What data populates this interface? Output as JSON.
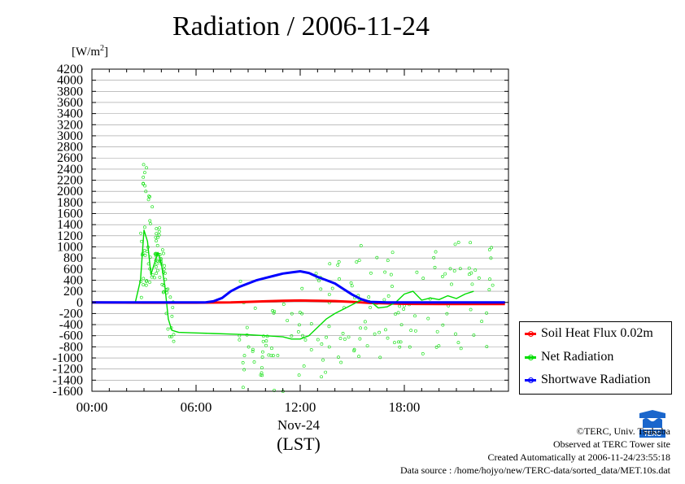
{
  "title": "Radiation / 2006-11-24",
  "unit_label": "[W/m2]",
  "x_date_label": "Nov-24",
  "x_axis_label": "(LST)",
  "footer": {
    "line1": "©TERC, Univ. Tsukuba",
    "line2": "Observed at TERC Tower site",
    "line3": "Created Automatically at 2006-11-24/23:55:18",
    "line4": "Data source : /home/hojyo/new/TERC-data/sorted_data/MET.10s.dat"
  },
  "logo_text": "TERC",
  "colors": {
    "soil": "#ff0000",
    "net": "#00dd00",
    "shortwave": "#0000ff",
    "grid": "#999999"
  },
  "chart_data": {
    "type": "line",
    "title": "Radiation / 2006-11-24",
    "xlabel": "(LST)",
    "ylabel": "[W/m2]",
    "xlim": [
      0,
      24
    ],
    "ylim": [
      -1600,
      4200
    ],
    "grid": true,
    "legend_position": "right",
    "x_ticks": [
      "00:00",
      "06:00",
      "12:00",
      "18:00"
    ],
    "x_tick_hours": [
      0,
      6,
      12,
      18
    ],
    "y_ticks": [
      -1600,
      -1400,
      -1200,
      -1000,
      -800,
      -600,
      -400,
      -200,
      0,
      200,
      400,
      600,
      800,
      1000,
      1200,
      1400,
      1600,
      1800,
      2000,
      2200,
      2400,
      2600,
      2800,
      3000,
      3200,
      3400,
      3600,
      3800,
      4000,
      4200
    ],
    "series": [
      {
        "name": "Soil Heat Flux 0.02m",
        "color": "#ff0000",
        "x": [
          0,
          3,
          6,
          8,
          9,
          10,
          11,
          12,
          13,
          14,
          15,
          16,
          18,
          20,
          22,
          23.8
        ],
        "y": [
          0,
          -5,
          -5,
          0,
          10,
          20,
          30,
          35,
          30,
          25,
          10,
          -10,
          -25,
          -30,
          -30,
          -30
        ]
      },
      {
        "name": "Net Radiation",
        "color": "#00dd00",
        "x": [
          0,
          2.5,
          2.8,
          3.0,
          3.2,
          3.4,
          3.6,
          3.8,
          4.0,
          4.2,
          4.4,
          4.6,
          4.8,
          5.0,
          6,
          7,
          8,
          9,
          10,
          11,
          11.5,
          12,
          12.5,
          13,
          13.5,
          14,
          14.5,
          15,
          15.5,
          16,
          16.5,
          17,
          17.5,
          18,
          18.5,
          19,
          19.5,
          20,
          20.5,
          21,
          21.5,
          22
        ],
        "y": [
          0,
          0,
          400,
          1300,
          1100,
          500,
          700,
          900,
          700,
          300,
          -300,
          -500,
          -520,
          -540,
          -550,
          -560,
          -570,
          -580,
          -600,
          -620,
          -660,
          -660,
          -600,
          -450,
          -300,
          -200,
          -120,
          -40,
          40,
          30,
          -100,
          -80,
          0,
          150,
          200,
          40,
          80,
          50,
          120,
          70,
          150,
          200
        ]
      },
      {
        "name": "Shortwave Radiation",
        "color": "#0000ff",
        "x": [
          0,
          6.5,
          7.0,
          7.5,
          8.0,
          8.5,
          9.0,
          9.5,
          10.0,
          10.5,
          11.0,
          11.5,
          12.0,
          12.5,
          13.0,
          13.5,
          14.0,
          14.5,
          15.0,
          15.5,
          16.0,
          17,
          18,
          20,
          22,
          23.8
        ],
        "y": [
          0,
          0,
          20,
          80,
          200,
          280,
          340,
          400,
          440,
          480,
          520,
          540,
          560,
          530,
          460,
          400,
          340,
          240,
          140,
          60,
          10,
          0,
          0,
          0,
          0,
          0
        ]
      }
    ]
  }
}
